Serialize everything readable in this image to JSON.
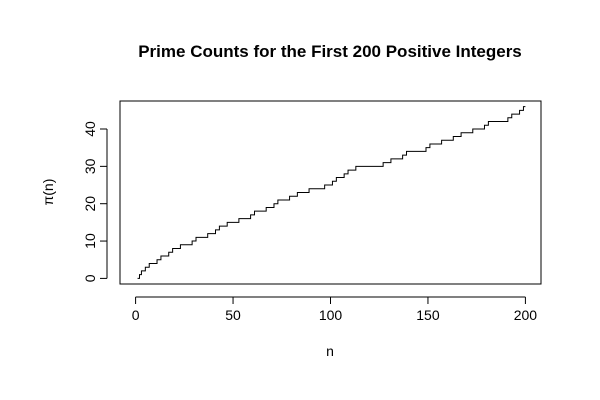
{
  "chart_data": {
    "type": "line",
    "line_style": "step",
    "title": "Prime Counts for the First 200 Positive Integers",
    "xlabel": "n",
    "ylabel": "π(n)",
    "xlim": [
      -8,
      208
    ],
    "ylim": [
      -1.5,
      47.5
    ],
    "x_ticks": [
      0,
      50,
      100,
      150,
      200
    ],
    "y_ticks": [
      0,
      10,
      20,
      30,
      40
    ],
    "grid": false,
    "legend": "none",
    "line_color": "#000000",
    "series": [
      {
        "x": [
          1,
          2,
          3,
          5,
          7,
          11,
          13,
          17,
          19,
          23,
          29,
          31,
          37,
          41,
          43,
          47,
          53,
          59,
          61,
          67,
          71,
          73,
          79,
          83,
          89,
          97,
          101,
          103,
          107,
          109,
          113,
          127,
          131,
          137,
          139,
          149,
          151,
          157,
          163,
          167,
          173,
          179,
          181,
          191,
          193,
          197,
          199,
          200
        ],
        "y": [
          0,
          1,
          2,
          3,
          4,
          5,
          6,
          7,
          8,
          9,
          10,
          11,
          12,
          13,
          14,
          15,
          16,
          17,
          18,
          19,
          20,
          21,
          22,
          23,
          24,
          25,
          26,
          27,
          28,
          29,
          30,
          31,
          32,
          33,
          34,
          35,
          36,
          37,
          38,
          39,
          40,
          41,
          42,
          43,
          44,
          45,
          46,
          46
        ]
      }
    ]
  }
}
